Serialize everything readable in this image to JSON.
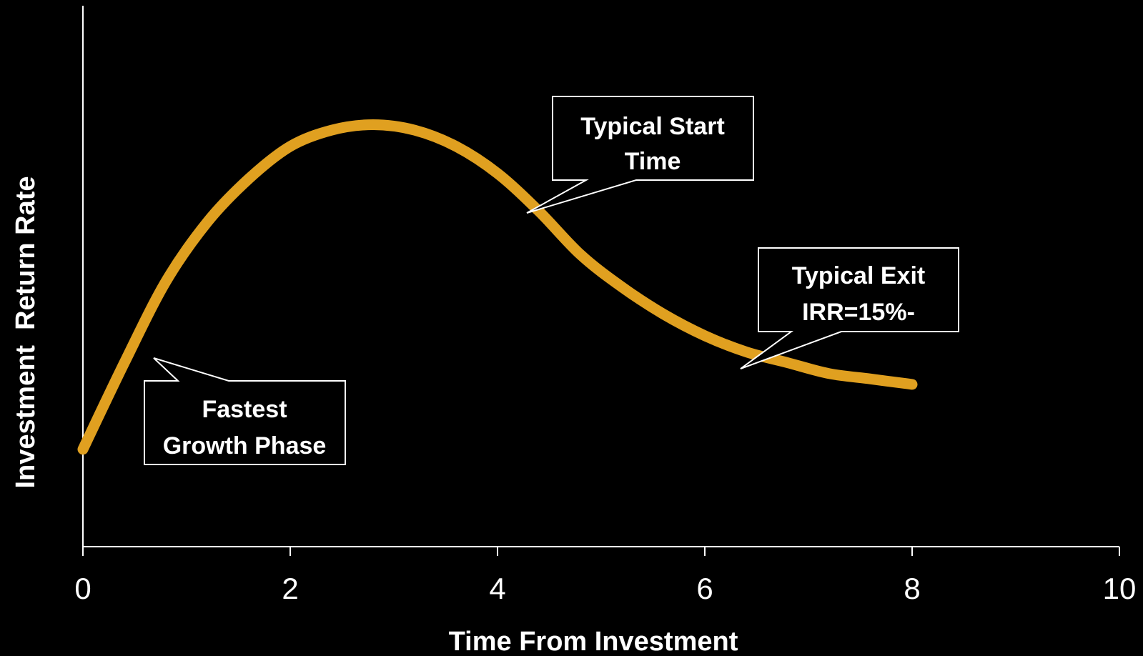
{
  "chart_data": {
    "type": "line",
    "title": "",
    "xlabel": "Time From Investment",
    "ylabel": "Investment  Return Rate",
    "xlim": [
      0,
      10
    ],
    "ylim": [
      0,
      1
    ],
    "grid": false,
    "y_ticks_shown": false,
    "x_ticks": [
      "0",
      "2",
      "4",
      "6",
      "8",
      "10"
    ],
    "line_color": "#E0A020",
    "series": [
      {
        "x": [
          0,
          0.4,
          0.8,
          1.2,
          1.6,
          2.0,
          2.4,
          2.8,
          3.2,
          3.6,
          4.0,
          4.4,
          4.8,
          5.2,
          5.6,
          6.0,
          6.4,
          6.8,
          7.2,
          7.6,
          8.0
        ],
        "y": [
          0.18,
          0.34,
          0.49,
          0.6,
          0.68,
          0.74,
          0.77,
          0.78,
          0.77,
          0.74,
          0.69,
          0.62,
          0.54,
          0.48,
          0.43,
          0.39,
          0.36,
          0.34,
          0.32,
          0.31,
          0.3
        ]
      }
    ],
    "annotations": [
      {
        "name": "typical-start-time",
        "lines": [
          "Typical Start",
          "Time"
        ],
        "points_to_x": 4.25
      },
      {
        "name": "typical-exit",
        "lines": [
          "Typical Exit",
          "IRR=15%-"
        ],
        "points_to_x": 6.35
      },
      {
        "name": "fastest-growth-phase",
        "lines": [
          "Fastest",
          "Growth Phase"
        ],
        "points_to_x": 0.68
      }
    ]
  }
}
